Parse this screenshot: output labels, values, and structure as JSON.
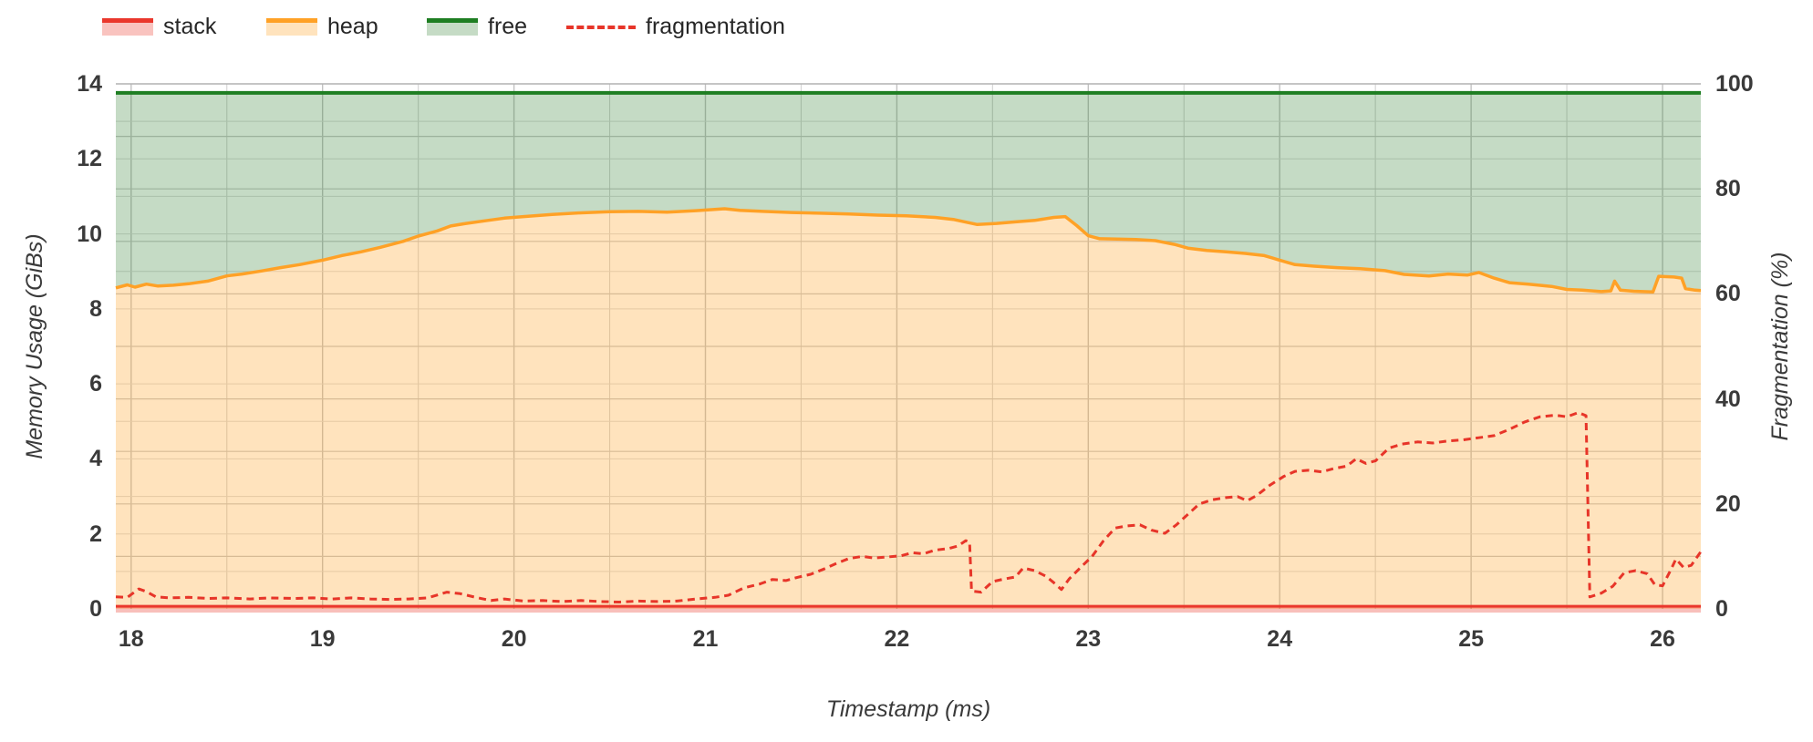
{
  "chart_data": {
    "type": "area",
    "title": "",
    "x": {
      "label": "Timestamp (ms)",
      "plot_min": 17.92,
      "plot_max": 26.2,
      "ticks": [
        "18",
        "19",
        "20",
        "21",
        "22",
        "23",
        "24",
        "25",
        "26"
      ],
      "tick_values": [
        18,
        19,
        20,
        21,
        22,
        23,
        24,
        25,
        26
      ],
      "minor_grid_step": 0.5
    },
    "y_left": {
      "label": "Memory Usage (GiBs)",
      "min": 0,
      "max": 14,
      "ticks": [
        "0",
        "2",
        "4",
        "6",
        "8",
        "10",
        "12",
        "14"
      ],
      "tick_values": [
        0,
        2,
        4,
        6,
        8,
        10,
        12,
        14
      ],
      "grid_step": 1
    },
    "y_right": {
      "label": "Fragmentation (%)",
      "min": 0,
      "max": 100,
      "ticks": [
        "0",
        "20",
        "40",
        "60",
        "80",
        "100"
      ],
      "tick_values": [
        0,
        20,
        40,
        60,
        80,
        100
      ],
      "grid_step": 10
    },
    "legend": [
      {
        "label": "stack",
        "line_color": "#ea372c",
        "fill_color": "rgba(234,55,44,0.30)",
        "dashed": false
      },
      {
        "label": "heap",
        "line_color": "#ffa126",
        "fill_color": "rgba(255,161,38,0.30)",
        "dashed": false
      },
      {
        "label": "free",
        "line_color": "#1e7e22",
        "fill_color": "rgba(46,125,46,0.28)",
        "dashed": false
      },
      {
        "label": "fragmentation",
        "line_color": "#e73529",
        "fill_color": null,
        "dashed": true
      }
    ],
    "series": [
      {
        "name": "stack",
        "axis": "left",
        "style": "area",
        "color": "#ea372c",
        "fill": "rgba(234,55,44,0.32)",
        "constant_value": 0.07
      },
      {
        "name": "heap",
        "axis": "left",
        "style": "area",
        "color": "#ffa126",
        "fill": "rgba(255,161,38,0.30)",
        "points": [
          [
            17.92,
            8.56
          ],
          [
            17.98,
            8.64
          ],
          [
            18.02,
            8.58
          ],
          [
            18.08,
            8.66
          ],
          [
            18.14,
            8.61
          ],
          [
            18.22,
            8.63
          ],
          [
            18.3,
            8.67
          ],
          [
            18.4,
            8.74
          ],
          [
            18.5,
            8.88
          ],
          [
            18.58,
            8.93
          ],
          [
            18.68,
            9.01
          ],
          [
            18.78,
            9.1
          ],
          [
            18.88,
            9.18
          ],
          [
            19.0,
            9.3
          ],
          [
            19.1,
            9.42
          ],
          [
            19.2,
            9.52
          ],
          [
            19.3,
            9.64
          ],
          [
            19.42,
            9.8
          ],
          [
            19.5,
            9.94
          ],
          [
            19.6,
            10.08
          ],
          [
            19.67,
            10.21
          ],
          [
            19.75,
            10.28
          ],
          [
            19.85,
            10.35
          ],
          [
            19.95,
            10.42
          ],
          [
            20.05,
            10.46
          ],
          [
            20.2,
            10.52
          ],
          [
            20.35,
            10.56
          ],
          [
            20.5,
            10.59
          ],
          [
            20.65,
            10.6
          ],
          [
            20.8,
            10.58
          ],
          [
            20.95,
            10.62
          ],
          [
            21.1,
            10.67
          ],
          [
            21.18,
            10.63
          ],
          [
            21.3,
            10.6
          ],
          [
            21.45,
            10.57
          ],
          [
            21.6,
            10.55
          ],
          [
            21.75,
            10.53
          ],
          [
            21.9,
            10.5
          ],
          [
            22.05,
            10.48
          ],
          [
            22.2,
            10.44
          ],
          [
            22.3,
            10.38
          ],
          [
            22.42,
            10.25
          ],
          [
            22.52,
            10.28
          ],
          [
            22.62,
            10.32
          ],
          [
            22.72,
            10.36
          ],
          [
            22.82,
            10.44
          ],
          [
            22.88,
            10.46
          ],
          [
            22.94,
            10.22
          ],
          [
            23.0,
            9.95
          ],
          [
            23.06,
            9.87
          ],
          [
            23.15,
            9.86
          ],
          [
            23.25,
            9.85
          ],
          [
            23.35,
            9.82
          ],
          [
            23.45,
            9.72
          ],
          [
            23.52,
            9.62
          ],
          [
            23.62,
            9.56
          ],
          [
            23.72,
            9.52
          ],
          [
            23.82,
            9.48
          ],
          [
            23.92,
            9.42
          ],
          [
            24.0,
            9.3
          ],
          [
            24.08,
            9.18
          ],
          [
            24.18,
            9.14
          ],
          [
            24.3,
            9.1
          ],
          [
            24.42,
            9.07
          ],
          [
            24.55,
            9.02
          ],
          [
            24.65,
            8.92
          ],
          [
            24.78,
            8.88
          ],
          [
            24.88,
            8.93
          ],
          [
            24.98,
            8.9
          ],
          [
            25.04,
            8.97
          ],
          [
            25.12,
            8.82
          ],
          [
            25.2,
            8.7
          ],
          [
            25.3,
            8.66
          ],
          [
            25.42,
            8.6
          ],
          [
            25.5,
            8.52
          ],
          [
            25.58,
            8.5
          ],
          [
            25.68,
            8.46
          ],
          [
            25.73,
            8.48
          ],
          [
            25.75,
            8.74
          ],
          [
            25.78,
            8.5
          ],
          [
            25.85,
            8.47
          ],
          [
            25.95,
            8.45
          ],
          [
            25.98,
            8.87
          ],
          [
            26.06,
            8.85
          ],
          [
            26.1,
            8.82
          ],
          [
            26.12,
            8.54
          ],
          [
            26.17,
            8.5
          ],
          [
            26.2,
            8.49
          ]
        ]
      },
      {
        "name": "free",
        "axis": "left",
        "style": "area_band_above_heap",
        "color": "#1e7e22",
        "fill": "rgba(46,125,46,0.28)",
        "top_value": 13.76
      },
      {
        "name": "fragmentation",
        "axis": "right",
        "style": "dashed_line",
        "color": "#e73529",
        "points": [
          [
            17.92,
            2.3
          ],
          [
            17.98,
            2.2
          ],
          [
            18.04,
            3.8
          ],
          [
            18.08,
            3.3
          ],
          [
            18.13,
            2.3
          ],
          [
            18.2,
            2.1
          ],
          [
            18.3,
            2.2
          ],
          [
            18.4,
            2.0
          ],
          [
            18.5,
            2.1
          ],
          [
            18.62,
            1.9
          ],
          [
            18.72,
            2.1
          ],
          [
            18.85,
            2.0
          ],
          [
            18.95,
            2.1
          ],
          [
            19.05,
            1.9
          ],
          [
            19.15,
            2.1
          ],
          [
            19.25,
            1.9
          ],
          [
            19.35,
            1.8
          ],
          [
            19.45,
            1.9
          ],
          [
            19.55,
            2.1
          ],
          [
            19.65,
            3.2
          ],
          [
            19.72,
            2.9
          ],
          [
            19.8,
            2.2
          ],
          [
            19.88,
            1.6
          ],
          [
            19.95,
            1.9
          ],
          [
            20.05,
            1.5
          ],
          [
            20.15,
            1.6
          ],
          [
            20.25,
            1.4
          ],
          [
            20.35,
            1.6
          ],
          [
            20.45,
            1.4
          ],
          [
            20.55,
            1.3
          ],
          [
            20.65,
            1.5
          ],
          [
            20.75,
            1.4
          ],
          [
            20.85,
            1.5
          ],
          [
            20.95,
            1.9
          ],
          [
            21.05,
            2.2
          ],
          [
            21.12,
            2.6
          ],
          [
            21.2,
            4.0
          ],
          [
            21.28,
            4.7
          ],
          [
            21.35,
            5.6
          ],
          [
            21.42,
            5.4
          ],
          [
            21.48,
            6.0
          ],
          [
            21.55,
            6.6
          ],
          [
            21.62,
            7.6
          ],
          [
            21.68,
            8.6
          ],
          [
            21.75,
            9.6
          ],
          [
            21.82,
            10.0
          ],
          [
            21.88,
            9.7
          ],
          [
            21.95,
            9.9
          ],
          [
            22.02,
            10.1
          ],
          [
            22.08,
            10.7
          ],
          [
            22.14,
            10.5
          ],
          [
            22.2,
            11.2
          ],
          [
            22.27,
            11.5
          ],
          [
            22.32,
            12.0
          ],
          [
            22.36,
            13.0
          ],
          [
            22.38,
            12.7
          ],
          [
            22.39,
            3.4
          ],
          [
            22.44,
            3.2
          ],
          [
            22.5,
            5.2
          ],
          [
            22.56,
            5.7
          ],
          [
            22.62,
            6.1
          ],
          [
            22.66,
            7.8
          ],
          [
            22.72,
            7.3
          ],
          [
            22.78,
            6.2
          ],
          [
            22.82,
            5.0
          ],
          [
            22.86,
            3.7
          ],
          [
            22.9,
            5.7
          ],
          [
            22.96,
            7.9
          ],
          [
            23.02,
            10.0
          ],
          [
            23.08,
            13.0
          ],
          [
            23.14,
            15.4
          ],
          [
            23.2,
            15.8
          ],
          [
            23.27,
            16.0
          ],
          [
            23.33,
            15.0
          ],
          [
            23.4,
            14.4
          ],
          [
            23.46,
            16.0
          ],
          [
            23.52,
            18.0
          ],
          [
            23.58,
            20.0
          ],
          [
            23.65,
            20.8
          ],
          [
            23.72,
            21.2
          ],
          [
            23.78,
            21.4
          ],
          [
            23.83,
            20.6
          ],
          [
            23.88,
            21.6
          ],
          [
            23.95,
            23.6
          ],
          [
            24.02,
            25.2
          ],
          [
            24.08,
            26.2
          ],
          [
            24.15,
            26.4
          ],
          [
            24.22,
            26.1
          ],
          [
            24.28,
            26.7
          ],
          [
            24.35,
            27.2
          ],
          [
            24.4,
            28.6
          ],
          [
            24.45,
            27.7
          ],
          [
            24.5,
            28.2
          ],
          [
            24.57,
            30.6
          ],
          [
            24.64,
            31.4
          ],
          [
            24.72,
            31.8
          ],
          [
            24.8,
            31.6
          ],
          [
            24.88,
            32.0
          ],
          [
            24.96,
            32.2
          ],
          [
            25.04,
            32.6
          ],
          [
            25.12,
            33.0
          ],
          [
            25.2,
            34.2
          ],
          [
            25.28,
            35.6
          ],
          [
            25.36,
            36.6
          ],
          [
            25.44,
            36.9
          ],
          [
            25.5,
            36.6
          ],
          [
            25.56,
            37.4
          ],
          [
            25.6,
            36.8
          ],
          [
            25.62,
            2.3
          ],
          [
            25.68,
            3.0
          ],
          [
            25.74,
            4.3
          ],
          [
            25.8,
            6.9
          ],
          [
            25.86,
            7.3
          ],
          [
            25.92,
            6.7
          ],
          [
            25.96,
            4.6
          ],
          [
            26.0,
            4.4
          ],
          [
            26.04,
            7.2
          ],
          [
            26.07,
            9.5
          ],
          [
            26.11,
            7.9
          ],
          [
            26.15,
            8.3
          ],
          [
            26.2,
            10.9
          ]
        ]
      }
    ],
    "grid": {
      "top_border_color": "#b2b2b2",
      "vertical_major_color": "#c2c2c2",
      "vertical_minor_color": "#d4d4d4",
      "horizontal_gib_color": "#dadada",
      "horizontal_pct_color": "#c6c6c6"
    }
  }
}
